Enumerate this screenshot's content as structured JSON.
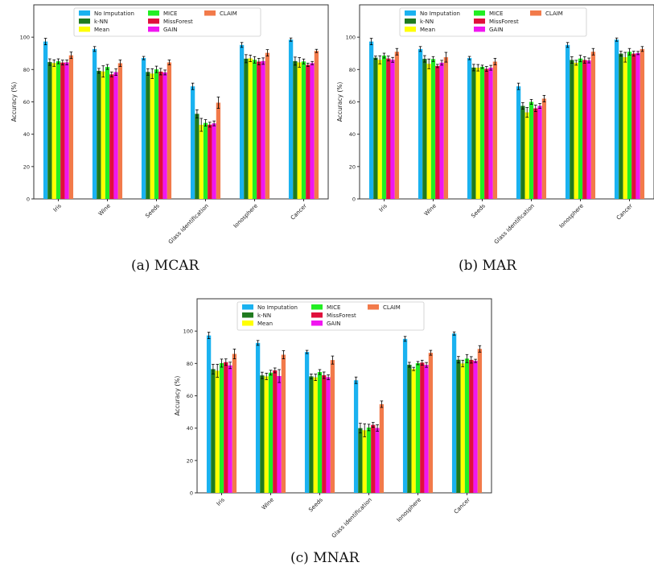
{
  "chart_data": [
    {
      "type": "bar",
      "caption": "(a)  MCAR",
      "ylabel": "Accuracy (%)",
      "ylim": [
        0,
        120
      ],
      "yticks": [
        0,
        20,
        40,
        60,
        80,
        100
      ],
      "categories": [
        "Iris",
        "Wine",
        "Seeds",
        "Glass identification",
        "Ionosphere",
        "Cancer"
      ],
      "series": [
        {
          "name": "No Imputation",
          "color": "#1ab2f0",
          "values": [
            97.3,
            92.7,
            87.1,
            69.6,
            95.2,
            98.5
          ],
          "errors": [
            2.0,
            1.5,
            1.0,
            2.0,
            1.5,
            1.0
          ]
        },
        {
          "name": "k-NN",
          "color": "#1f7a1f",
          "values": [
            84.6,
            79.2,
            78.5,
            52.6,
            86.7,
            85.2
          ],
          "errors": [
            2.0,
            1.5,
            2.0,
            2.5,
            2.5,
            2.5
          ]
        },
        {
          "name": "Mean",
          "color": "#ffff00",
          "values": [
            84.0,
            78.8,
            77.5,
            45.8,
            86.9,
            84.4
          ],
          "errors": [
            2.0,
            3.5,
            3.0,
            4.0,
            2.0,
            3.0
          ]
        },
        {
          "name": "MICE",
          "color": "#22ee22",
          "values": [
            85.1,
            81.6,
            80.1,
            47.0,
            86.0,
            85.0
          ],
          "errors": [
            1.5,
            1.5,
            2.0,
            2.0,
            2.0,
            1.5
          ]
        },
        {
          "name": "MissForest",
          "color": "#e0103c",
          "values": [
            84.3,
            77.0,
            78.7,
            45.9,
            84.9,
            82.9
          ],
          "errors": [
            1.5,
            1.5,
            2.0,
            1.5,
            2.0,
            1.0
          ]
        },
        {
          "name": "GAIN",
          "color": "#f016f0",
          "values": [
            84.4,
            78.4,
            78.2,
            46.7,
            85.2,
            84.0
          ],
          "errors": [
            1.5,
            2.0,
            1.5,
            1.5,
            2.0,
            1.0
          ]
        },
        {
          "name": "CLAIM",
          "color": "#f27a4a",
          "values": [
            88.8,
            83.9,
            84.4,
            59.5,
            90.3,
            91.5
          ],
          "errors": [
            2.0,
            2.0,
            1.5,
            3.5,
            2.0,
            1.0
          ]
        }
      ]
    },
    {
      "type": "bar",
      "caption": "(b)  MAR",
      "ylabel": "Accuracy (%)",
      "ylim": [
        0,
        120
      ],
      "yticks": [
        0,
        20,
        40,
        60,
        80,
        100
      ],
      "categories": [
        "Iris",
        "Wine",
        "Seeds",
        "Glass identification",
        "Ionosphere",
        "Cancer"
      ],
      "series": [
        {
          "name": "No Imputation",
          "color": "#1ab2f0",
          "values": [
            97.3,
            92.7,
            87.1,
            69.6,
            95.2,
            98.5
          ],
          "errors": [
            2.0,
            1.5,
            1.0,
            2.0,
            1.5,
            1.0
          ]
        },
        {
          "name": "k-NN",
          "color": "#1f7a1f",
          "values": [
            87.3,
            86.6,
            81.2,
            57.5,
            85.9,
            89.8
          ],
          "errors": [
            1.0,
            2.0,
            2.0,
            2.0,
            2.0,
            1.5
          ]
        },
        {
          "name": "Mean",
          "color": "#ffff00",
          "values": [
            86.0,
            83.5,
            81.1,
            53.5,
            84.2,
            87.6
          ],
          "errors": [
            2.5,
            3.0,
            2.0,
            3.0,
            1.5,
            3.0
          ]
        },
        {
          "name": "MICE",
          "color": "#22ee22",
          "values": [
            88.6,
            86.5,
            81.7,
            60.0,
            86.8,
            91.0
          ],
          "errors": [
            1.5,
            1.5,
            1.0,
            1.5,
            2.0,
            2.0
          ]
        },
        {
          "name": "MissForest",
          "color": "#e0103c",
          "values": [
            86.8,
            82.2,
            80.4,
            56.0,
            85.9,
            89.8
          ],
          "errors": [
            1.5,
            1.0,
            1.5,
            2.0,
            2.0,
            1.5
          ]
        },
        {
          "name": "GAIN",
          "color": "#f016f0",
          "values": [
            86.0,
            84.2,
            81.1,
            57.5,
            85.6,
            90.2
          ],
          "errors": [
            1.5,
            1.5,
            1.5,
            1.5,
            1.5,
            1.0
          ]
        },
        {
          "name": "CLAIM",
          "color": "#f27a4a",
          "values": [
            91.0,
            87.6,
            84.9,
            62.0,
            91.0,
            92.7
          ],
          "errors": [
            2.0,
            3.0,
            2.0,
            2.0,
            2.0,
            1.5
          ]
        }
      ]
    },
    {
      "type": "bar",
      "caption": "(c)  MNAR",
      "ylabel": "Accuracy (%)",
      "ylim": [
        0,
        120
      ],
      "yticks": [
        0,
        20,
        40,
        60,
        80,
        100
      ],
      "categories": [
        "Iris",
        "Wine",
        "Seeds",
        "Glass identification",
        "Ionosphere",
        "Cancer"
      ],
      "series": [
        {
          "name": "No Imputation",
          "color": "#1ab2f0",
          "values": [
            97.3,
            92.7,
            87.1,
            69.6,
            95.2,
            98.5
          ],
          "errors": [
            2.0,
            1.5,
            1.0,
            2.0,
            1.5,
            1.0
          ]
        },
        {
          "name": "k-NN",
          "color": "#1f7a1f",
          "values": [
            76.5,
            72.6,
            72.0,
            40.0,
            79.2,
            82.3
          ],
          "errors": [
            3.0,
            2.0,
            1.5,
            3.0,
            1.5,
            2.0
          ]
        },
        {
          "name": "Mean",
          "color": "#ffff00",
          "values": [
            75.5,
            72.0,
            71.4,
            38.7,
            76.6,
            80.0
          ],
          "errors": [
            4.0,
            2.0,
            2.0,
            4.0,
            1.0,
            2.0
          ]
        },
        {
          "name": "MICE",
          "color": "#22ee22",
          "values": [
            80.2,
            74.3,
            74.7,
            40.4,
            80.2,
            83.0
          ],
          "errors": [
            2.5,
            1.5,
            1.5,
            2.0,
            1.0,
            2.5
          ]
        },
        {
          "name": "MissForest",
          "color": "#e0103c",
          "values": [
            80.8,
            75.7,
            72.7,
            42.0,
            80.5,
            82.2
          ],
          "errors": [
            2.0,
            1.5,
            2.0,
            1.5,
            1.5,
            2.0
          ]
        },
        {
          "name": "GAIN",
          "color": "#f016f0",
          "values": [
            78.8,
            72.2,
            71.5,
            40.1,
            79.1,
            81.6
          ],
          "errors": [
            2.0,
            4.0,
            1.5,
            2.0,
            1.5,
            1.0
          ]
        },
        {
          "name": "CLAIM",
          "color": "#f27a4a",
          "values": [
            85.9,
            85.4,
            82.1,
            54.8,
            86.6,
            89.0
          ],
          "errors": [
            3.0,
            2.5,
            2.5,
            2.0,
            1.5,
            2.0
          ]
        }
      ]
    }
  ]
}
